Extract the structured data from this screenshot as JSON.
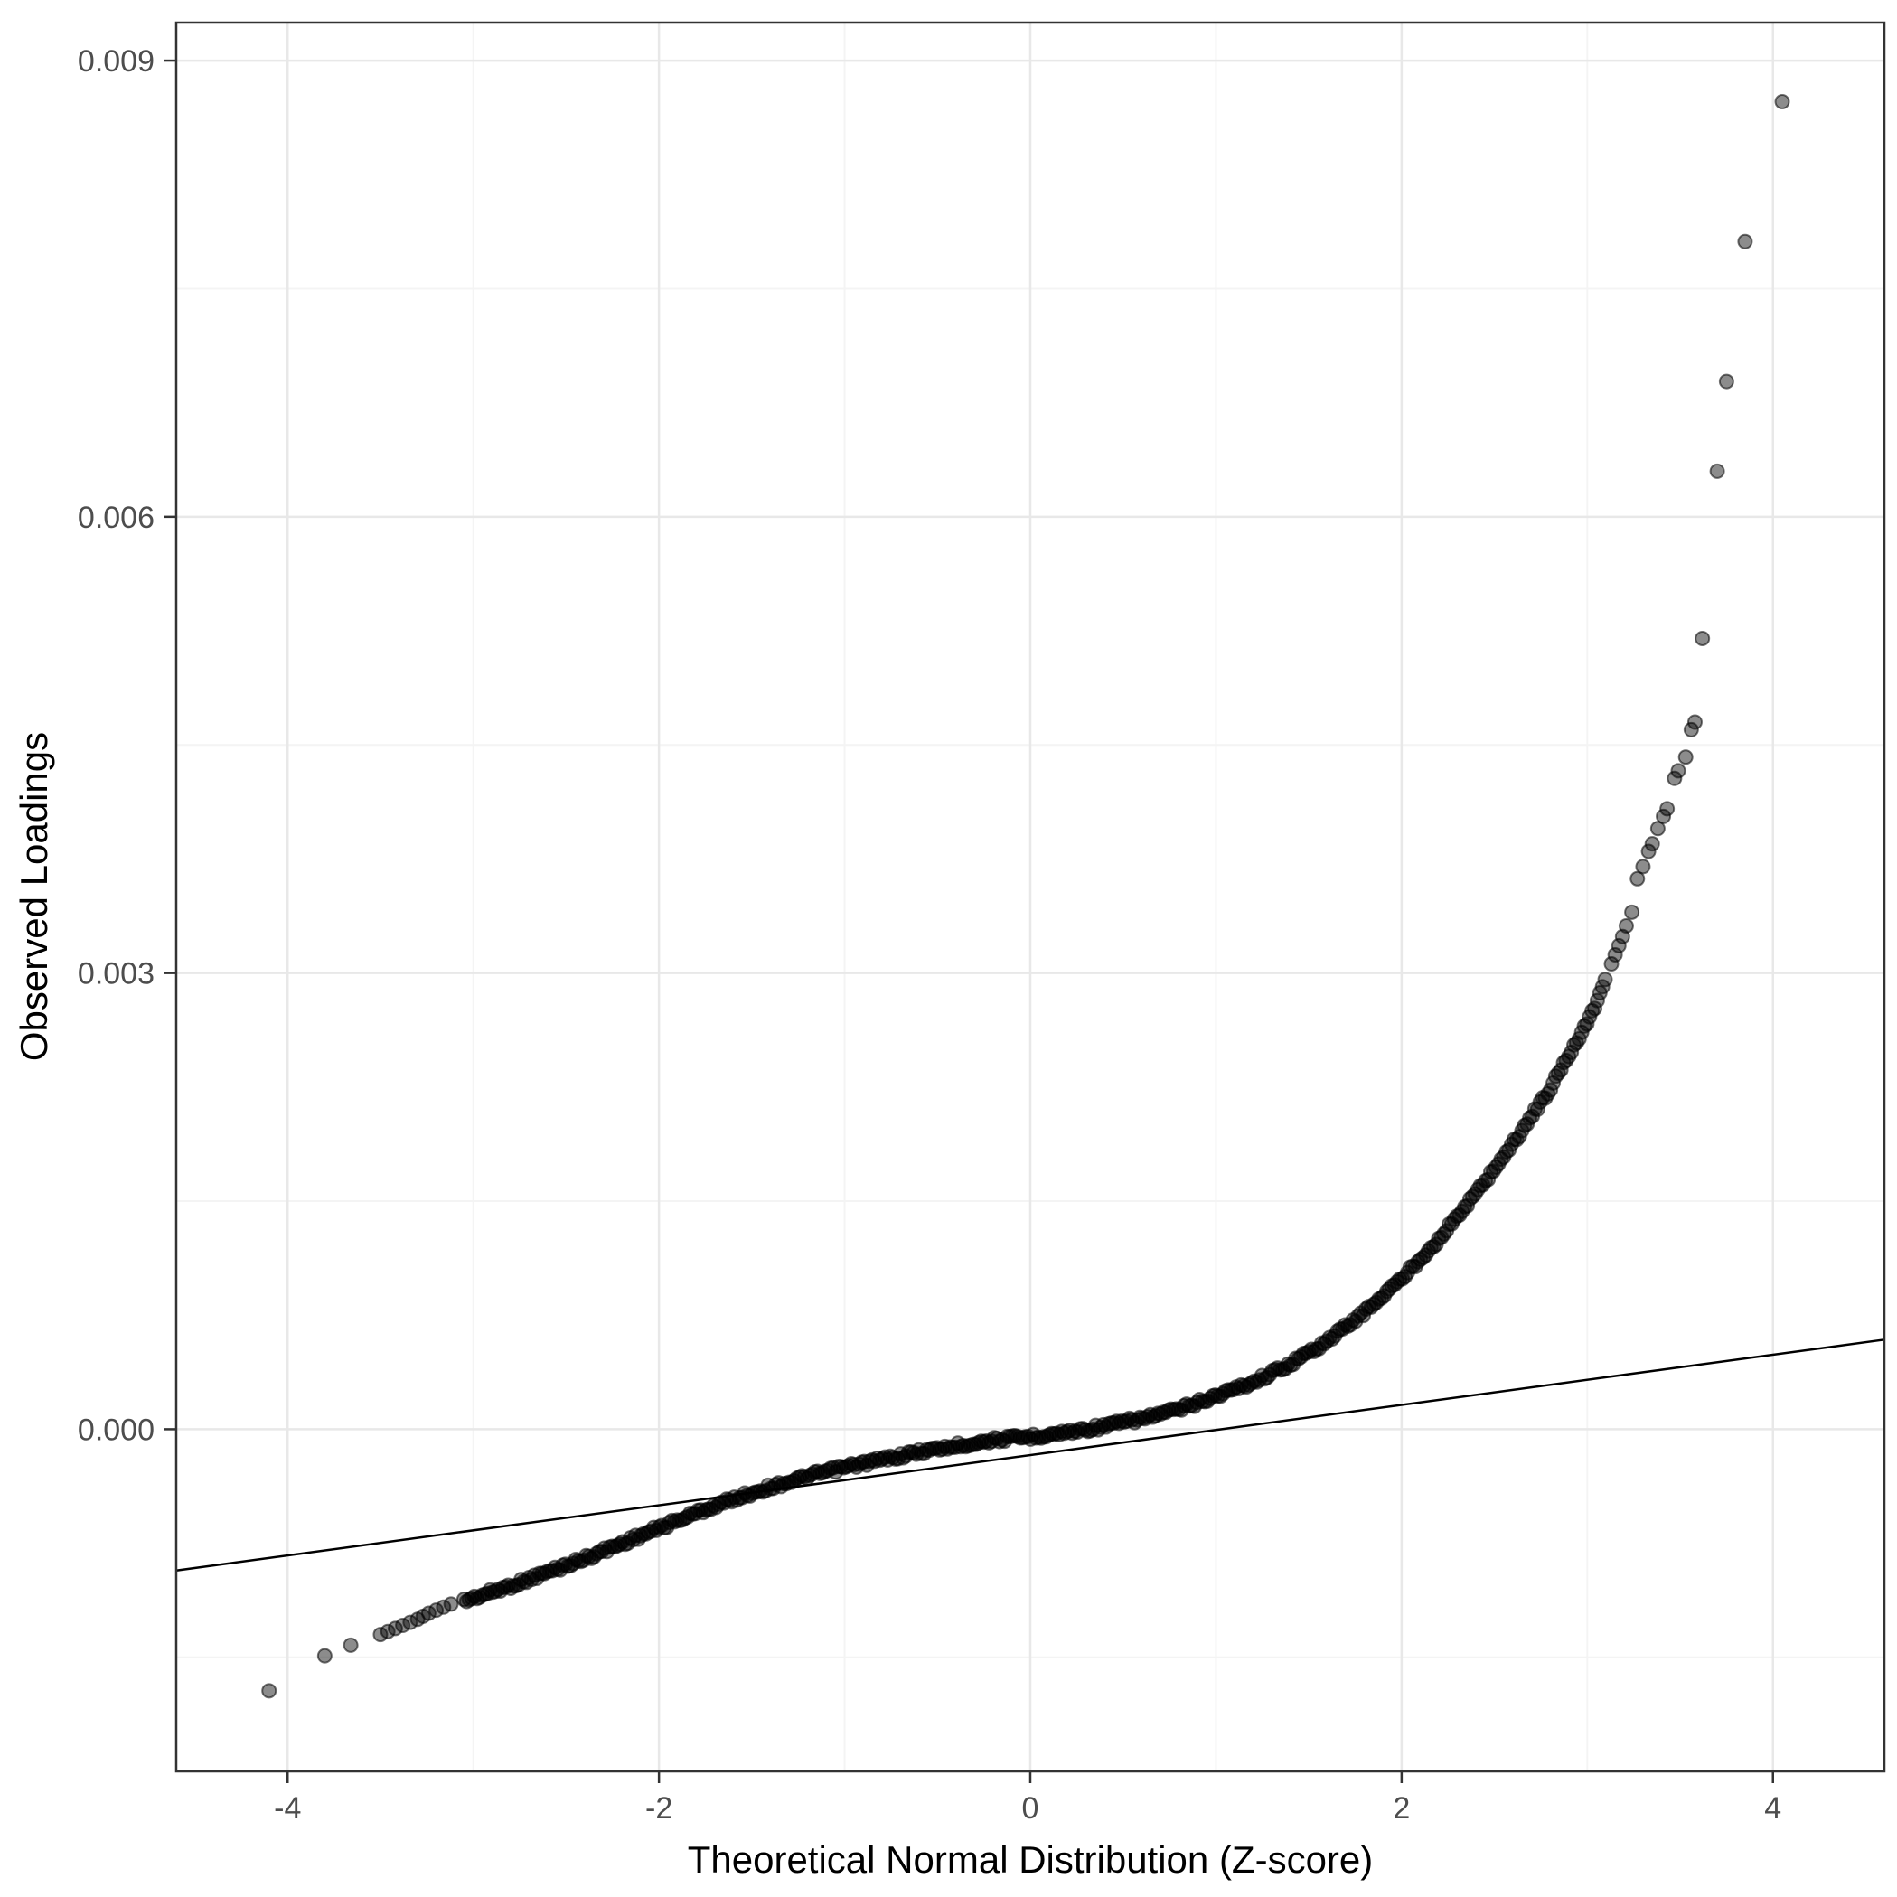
{
  "chart_data": {
    "type": "scatter",
    "subtype": "qq-plot",
    "title": "",
    "xlabel": "Theoretical Normal Distribution (Z-score)",
    "ylabel": "Observed Loadings",
    "xlim": [
      -4.6,
      4.6
    ],
    "ylim": [
      -0.00225,
      0.00925
    ],
    "x_ticks": [
      -4,
      -2,
      0,
      2,
      4
    ],
    "x_tick_labels": [
      "-4",
      "-2",
      "0",
      "2",
      "4"
    ],
    "x_minor_ticks": [
      -3,
      -1,
      1,
      3
    ],
    "y_ticks": [
      0,
      0.003,
      0.006,
      0.009
    ],
    "y_tick_labels": [
      "0.000",
      "0.003",
      "0.006",
      "0.009"
    ],
    "y_minor_ticks": [
      -0.0015,
      0.0015,
      0.0045,
      0.0075
    ],
    "grid": true,
    "legend": "none",
    "reference_line": {
      "x1": -4.6,
      "y1": -0.000929,
      "x2": 4.6,
      "y2": 0.000589
    },
    "dense_curve_keypoints": [
      [
        -3.05,
        -0.00113
      ],
      [
        -2.8,
        -0.00103
      ],
      [
        -2.6,
        -0.00094
      ],
      [
        -2.4,
        -0.00085
      ],
      [
        -2.2,
        -0.00075
      ],
      [
        -2.0,
        -0.00065
      ],
      [
        -1.8,
        -0.00055
      ],
      [
        -1.6,
        -0.00046
      ],
      [
        -1.4,
        -0.00038
      ],
      [
        -1.2,
        -0.00031
      ],
      [
        -1.0,
        -0.00025
      ],
      [
        -0.8,
        -0.0002
      ],
      [
        -0.6,
        -0.00015
      ],
      [
        -0.4,
        -0.00011
      ],
      [
        -0.2,
        -7e-05
      ],
      [
        0.0,
        -5e-05
      ],
      [
        0.2,
        -2e-05
      ],
      [
        0.4,
        2e-05
      ],
      [
        0.6,
        7e-05
      ],
      [
        0.8,
        0.00013
      ],
      [
        1.0,
        0.00022
      ],
      [
        1.2,
        0.00031
      ],
      [
        1.4,
        0.00043
      ],
      [
        1.6,
        0.00058
      ],
      [
        1.8,
        0.00077
      ],
      [
        2.0,
        0.00099
      ],
      [
        2.2,
        0.00125
      ],
      [
        2.4,
        0.00155
      ],
      [
        2.6,
        0.00188
      ],
      [
        2.7,
        0.00206
      ],
      [
        2.8,
        0.00224
      ],
      [
        2.9,
        0.00246
      ],
      [
        3.0,
        0.00268
      ],
      [
        3.05,
        0.00281
      ],
      [
        3.1,
        0.00298
      ]
    ],
    "dense_sample_step": 0.014,
    "isolated_points": [
      [
        -4.1,
        -0.00172
      ],
      [
        -3.8,
        -0.00149
      ],
      [
        -3.66,
        -0.00142
      ],
      [
        -3.5,
        -0.00135
      ],
      [
        -3.46,
        -0.00133
      ],
      [
        -3.42,
        -0.00131
      ],
      [
        -3.38,
        -0.00129
      ],
      [
        -3.34,
        -0.00127
      ],
      [
        -3.3,
        -0.00125
      ],
      [
        -3.27,
        -0.00123
      ],
      [
        -3.24,
        -0.00121
      ],
      [
        -3.2,
        -0.00119
      ],
      [
        -3.16,
        -0.00117
      ],
      [
        -3.12,
        -0.00115
      ],
      [
        3.13,
        0.00306
      ],
      [
        3.15,
        0.00312
      ],
      [
        3.17,
        0.00318
      ],
      [
        3.19,
        0.00324
      ],
      [
        3.21,
        0.00331
      ],
      [
        3.24,
        0.0034
      ],
      [
        3.27,
        0.00362
      ],
      [
        3.3,
        0.0037
      ],
      [
        3.33,
        0.0038
      ],
      [
        3.35,
        0.00385
      ],
      [
        3.38,
        0.00395
      ],
      [
        3.41,
        0.00403
      ],
      [
        3.43,
        0.00408
      ],
      [
        3.47,
        0.00428
      ],
      [
        3.49,
        0.00433
      ],
      [
        3.53,
        0.00442
      ],
      [
        3.56,
        0.0046
      ],
      [
        3.58,
        0.00465
      ],
      [
        3.62,
        0.0052
      ],
      [
        3.7,
        0.0063
      ],
      [
        3.75,
        0.00689
      ],
      [
        3.85,
        0.00781
      ],
      [
        4.05,
        0.00873
      ]
    ],
    "style": {
      "background": "#ffffff",
      "panel_background": "#ffffff",
      "grid_major_color": "#e8e8e8",
      "grid_minor_color": "#f4f4f4",
      "panel_border_color": "#333333",
      "tick_mark_color": "#333333",
      "tick_label_color": "#4d4d4d",
      "axis_title_color": "#000000",
      "point_color": "#000000",
      "point_opacity": 0.45,
      "line_color": "#000000"
    }
  }
}
